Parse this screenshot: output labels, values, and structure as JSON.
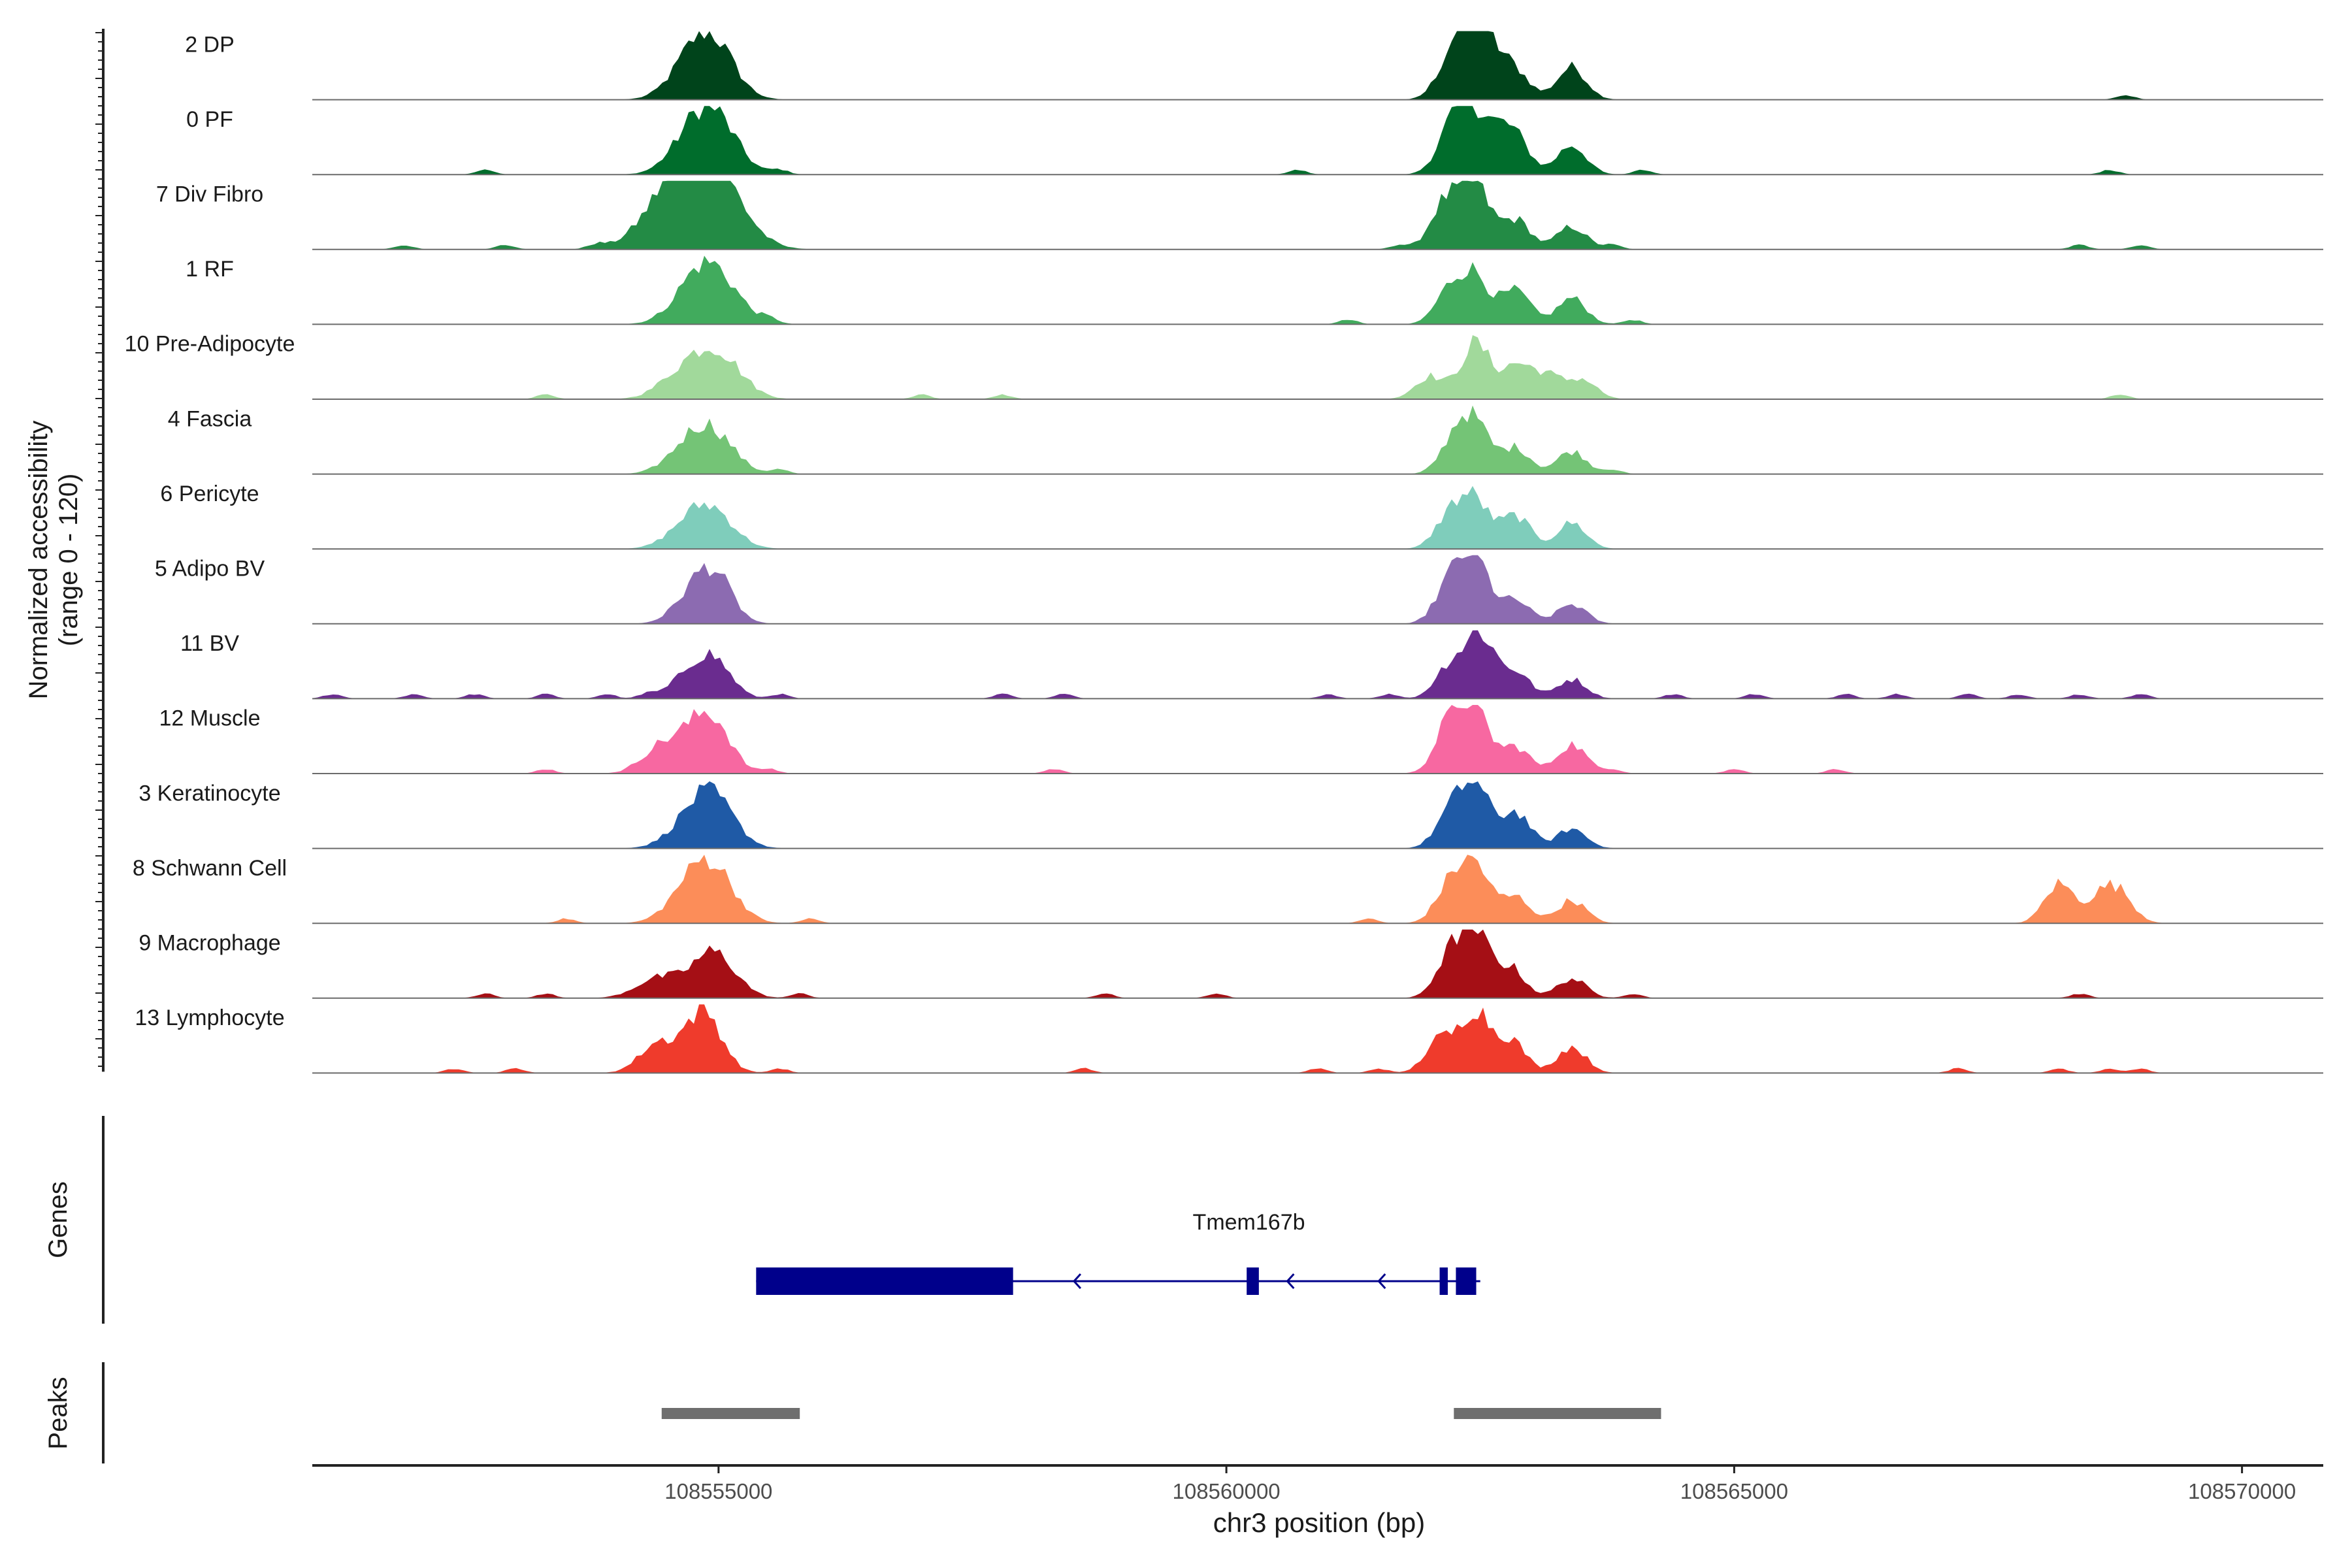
{
  "chart_data": {
    "type": "area",
    "title": "",
    "chromosome": "chr3",
    "xlabel": "chr3 position (bp)",
    "ylabel_line1": "Normalized accessibility",
    "ylabel_line2": "(range 0 - 120)",
    "xlim": [
      108551000,
      108570800
    ],
    "ylim": [
      0,
      120
    ],
    "x_ticks": [
      108555000,
      108560000,
      108565000,
      108570000
    ],
    "x_tick_labels": [
      "108555000",
      "108560000",
      "108565000",
      "108570000"
    ],
    "peak_base_heights": [
      0.6,
      0.75,
      0.95
    ],
    "tracks": [
      {
        "name": "2 DP",
        "color": "#00441b",
        "widths": [
          600,
          400
        ],
        "peaks": [
          [
            108554700,
            0.35
          ],
          [
            108554900,
            0.55
          ],
          [
            108555000,
            0.3
          ],
          [
            108562200,
            0.5
          ],
          [
            108562400,
            0.95
          ],
          [
            108562600,
            0.55
          ],
          [
            108562850,
            0.4
          ],
          [
            108563400,
            0.5
          ]
        ],
        "bumps": [
          108568850
        ]
      },
      {
        "name": "0 PF",
        "color": "#006d2c",
        "widths": [
          600,
          400
        ],
        "peaks": [
          [
            108554700,
            0.35
          ],
          [
            108554900,
            0.6
          ],
          [
            108555050,
            0.3
          ],
          [
            108562200,
            0.55
          ],
          [
            108562400,
            0.85
          ],
          [
            108562650,
            0.45
          ],
          [
            108562850,
            0.5
          ],
          [
            108563400,
            0.45
          ]
        ],
        "bumps": [
          108552700,
          108555600,
          108560700,
          108564100,
          108568700
        ]
      },
      {
        "name": "7 Div Fibro",
        "color": "#238b45",
        "widths": [
          800,
          400
        ],
        "peaks": [
          [
            108554500,
            0.55
          ],
          [
            108554800,
            0.85
          ],
          [
            108555000,
            0.6
          ],
          [
            108562150,
            0.7
          ],
          [
            108562450,
            0.95
          ],
          [
            108562850,
            0.45
          ],
          [
            108563400,
            0.35
          ]
        ],
        "bumps": [
          108551900,
          108552900,
          108553800,
          108561700,
          108563800,
          108568400,
          108569000
        ]
      },
      {
        "name": "1 RF",
        "color": "#41ab5d",
        "widths": [
          600,
          400
        ],
        "peaks": [
          [
            108554700,
            0.3
          ],
          [
            108554900,
            0.6
          ],
          [
            108555100,
            0.25
          ],
          [
            108562200,
            0.5
          ],
          [
            108562450,
            0.7
          ],
          [
            108562850,
            0.5
          ],
          [
            108563400,
            0.4
          ]
        ],
        "bumps": [
          108555500,
          108561200,
          108564000
        ]
      },
      {
        "name": "10 Pre-Adipocyte",
        "color": "#a1d99b",
        "widths": [
          600,
          400
        ],
        "peaks": [
          [
            108554600,
            0.3
          ],
          [
            108554900,
            0.5
          ],
          [
            108555100,
            0.3
          ],
          [
            108562000,
            0.35
          ],
          [
            108562450,
            0.85
          ],
          [
            108562850,
            0.5
          ],
          [
            108563150,
            0.35
          ],
          [
            108563500,
            0.3
          ]
        ],
        "bumps": [
          108553300,
          108557000,
          108557800,
          108568800
        ]
      },
      {
        "name": "4 Fascia",
        "color": "#74c476",
        "widths": [
          600,
          400
        ],
        "peaks": [
          [
            108554700,
            0.35
          ],
          [
            108554950,
            0.55
          ],
          [
            108562250,
            0.5
          ],
          [
            108562450,
            0.7
          ],
          [
            108562850,
            0.4
          ],
          [
            108563400,
            0.35
          ]
        ],
        "bumps": [
          108555600,
          108563800
        ]
      },
      {
        "name": "6 Pericyte",
        "color": "#7fcdbb",
        "widths": [
          600,
          400
        ],
        "peaks": [
          [
            108554700,
            0.3
          ],
          [
            108554950,
            0.5
          ],
          [
            108562200,
            0.5
          ],
          [
            108562450,
            0.7
          ],
          [
            108562850,
            0.5
          ],
          [
            108563400,
            0.4
          ]
        ],
        "bumps": []
      },
      {
        "name": "5 Adipo BV",
        "color": "#8c6bb1",
        "widths": [
          500,
          400
        ],
        "peaks": [
          [
            108554700,
            0.3
          ],
          [
            108554950,
            0.75
          ],
          [
            108562200,
            0.6
          ],
          [
            108562450,
            0.95
          ],
          [
            108562850,
            0.35
          ],
          [
            108563400,
            0.3
          ]
        ],
        "bumps": []
      },
      {
        "name": "11 BV",
        "color": "#6a2c8f",
        "widths": [
          500,
          400
        ],
        "peaks": [
          [
            108554700,
            0.3
          ],
          [
            108554950,
            0.55
          ],
          [
            108562200,
            0.5
          ],
          [
            108562500,
            0.95
          ],
          [
            108562850,
            0.4
          ],
          [
            108563400,
            0.3
          ]
        ],
        "bumps": [
          108551200,
          108552000,
          108552600,
          108553300,
          108553900,
          108554300,
          108555600,
          108557800,
          108558400,
          108561000,
          108561600,
          108564400,
          108565200,
          108566100,
          108566600,
          108567300,
          108567800,
          108568400,
          108569000
        ]
      },
      {
        "name": "12 Muscle",
        "color": "#f768a1",
        "widths": [
          500,
          400
        ],
        "peaks": [
          [
            108554400,
            0.35
          ],
          [
            108554700,
            0.4
          ],
          [
            108554950,
            0.75
          ],
          [
            108562200,
            0.75
          ],
          [
            108562450,
            0.9
          ],
          [
            108562850,
            0.4
          ],
          [
            108563400,
            0.45
          ]
        ],
        "bumps": [
          108553300,
          108555500,
          108558300,
          108563800,
          108565000,
          108566000
        ]
      },
      {
        "name": "3 Keratinocyte",
        "color": "#1f5aa6",
        "widths": [
          600,
          400
        ],
        "peaks": [
          [
            108554700,
            0.3
          ],
          [
            108554950,
            0.7
          ],
          [
            108562200,
            0.5
          ],
          [
            108562450,
            0.9
          ],
          [
            108562850,
            0.55
          ],
          [
            108563400,
            0.3
          ]
        ],
        "bumps": []
      },
      {
        "name": "8 Schwann Cell",
        "color": "#fc8d59",
        "widths": [
          600,
          400
        ],
        "peaks": [
          [
            108554700,
            0.4
          ],
          [
            108554950,
            0.75
          ],
          [
            108562200,
            0.55
          ],
          [
            108562450,
            0.85
          ],
          [
            108562850,
            0.4
          ],
          [
            108563400,
            0.35
          ],
          [
            108568200,
            0.6
          ],
          [
            108568600,
            0.35
          ],
          [
            108568800,
            0.4
          ]
        ],
        "bumps": [
          108553500,
          108555900,
          108561400
        ]
      },
      {
        "name": "9 Macrophage",
        "color": "#a50f15",
        "widths": [
          600,
          400
        ],
        "peaks": [
          [
            108554400,
            0.3
          ],
          [
            108554950,
            0.7
          ],
          [
            108562200,
            0.6
          ],
          [
            108562450,
            0.95
          ],
          [
            108562800,
            0.45
          ],
          [
            108563400,
            0.3
          ]
        ],
        "bumps": [
          108552700,
          108553300,
          108555800,
          108558800,
          108559900,
          108564000,
          108568400
        ]
      },
      {
        "name": "13 Lymphocyte",
        "color": "#ef3b2c",
        "widths": [
          500,
          400
        ],
        "peaks": [
          [
            108554400,
            0.45
          ],
          [
            108554850,
            0.95
          ],
          [
            108562100,
            0.5
          ],
          [
            108562450,
            0.95
          ],
          [
            108562800,
            0.5
          ],
          [
            108563400,
            0.4
          ]
        ],
        "bumps": [
          108552400,
          108553000,
          108555600,
          108558600,
          108560900,
          108561500,
          108567200,
          108568200,
          108568700,
          108569000
        ]
      }
    ],
    "gene": {
      "name": "Tmem167b",
      "strand": "-",
      "color": "#00008b",
      "start": 108555370,
      "end": 108562500,
      "exons": [
        [
          108555370,
          108557900
        ],
        [
          108560200,
          108560320
        ],
        [
          108562100,
          108562180
        ],
        [
          108562260,
          108562460
        ]
      ],
      "arrows": [
        108558500,
        108560600,
        108561500
      ]
    },
    "peaks_track": {
      "color": "#6e6e6e",
      "regions": [
        [
          108554440,
          108555800
        ],
        [
          108562240,
          108564280
        ]
      ]
    },
    "left_panels": [
      "Genes",
      "Peaks"
    ]
  }
}
